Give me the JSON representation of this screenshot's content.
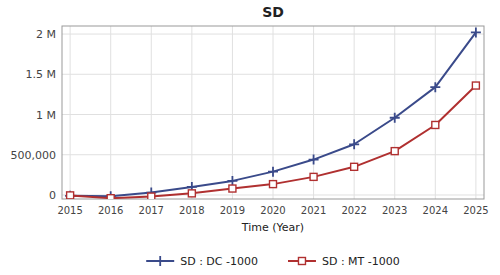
{
  "chart_data": {
    "type": "line",
    "title": "SD",
    "x_label": "Time (Year)",
    "x": [
      2015,
      2016,
      2017,
      2018,
      2019,
      2020,
      2021,
      2022,
      2023,
      2024,
      2025
    ],
    "series": [
      {
        "name": "SD : DC -1000",
        "color": "#3a4a8a",
        "marker": "plus",
        "values": [
          -10000,
          -15000,
          30000,
          100000,
          175000,
          290000,
          440000,
          630000,
          960000,
          1340000,
          2020000
        ]
      },
      {
        "name": "SD : MT -1000",
        "color": "#b03030",
        "marker": "square",
        "values": [
          -5000,
          -40000,
          -20000,
          20000,
          80000,
          135000,
          225000,
          350000,
          545000,
          870000,
          1360000
        ]
      }
    ],
    "xlim": [
      2014.8,
      2025.2
    ],
    "xticks": [
      2015,
      2016,
      2017,
      2018,
      2019,
      2020,
      2021,
      2022,
      2023,
      2024,
      2025
    ],
    "ylim": [
      -50000,
      2100000
    ],
    "yticks": [
      0,
      {
        "value": 500000,
        "label": "500,000"
      },
      {
        "value": 1000000,
        "label": "1 M"
      },
      {
        "value": 1500000,
        "label": "1.5 M"
      },
      {
        "value": 2000000,
        "label": "2 M"
      }
    ],
    "grid": true,
    "legend": "bottom"
  }
}
